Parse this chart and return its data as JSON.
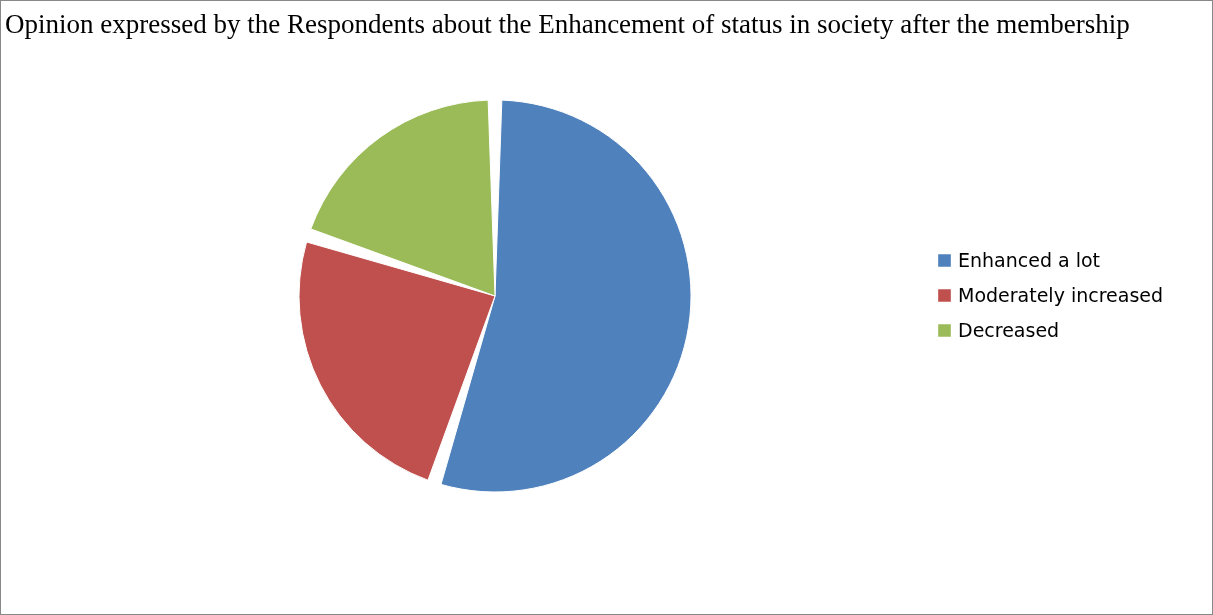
{
  "chart_data": {
    "type": "pie",
    "title": "Opinion expressed by the Respondents about the Enhancement of status in society after the membership",
    "categories": [
      "Enhanced a lot",
      "Moderately increased",
      "Decreased"
    ],
    "values": [
      55,
      25,
      20
    ],
    "colors": [
      "#4f81bd",
      "#c0504d",
      "#9bbb59"
    ],
    "legend": "right"
  }
}
